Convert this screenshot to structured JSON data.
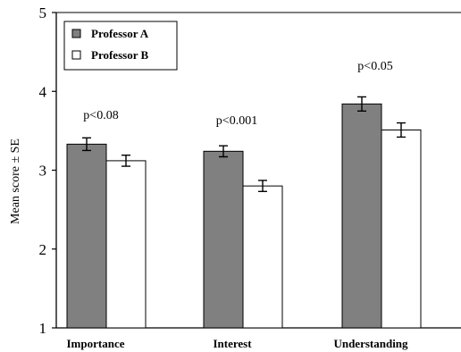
{
  "chart_data": {
    "type": "bar",
    "title": "",
    "xlabel": "",
    "ylabel": "Mean score ± SE",
    "ylim": [
      1,
      5
    ],
    "yticks": [
      "1",
      "2",
      "3",
      "4",
      "5"
    ],
    "categories": [
      "Importance",
      "Interest",
      "Understanding"
    ],
    "series": [
      {
        "name": "Professor A",
        "color": "#808080",
        "values": [
          3.33,
          3.24,
          3.84
        ],
        "errors": [
          0.08,
          0.07,
          0.09
        ]
      },
      {
        "name": "Professor B",
        "color": "#ffffff",
        "values": [
          3.12,
          2.8,
          3.51
        ],
        "errors": [
          0.07,
          0.07,
          0.09
        ]
      }
    ],
    "annotations": [
      "p<0.08",
      "p<0.001",
      "p<0.05"
    ],
    "grid": false,
    "legend_position": "top-left"
  }
}
